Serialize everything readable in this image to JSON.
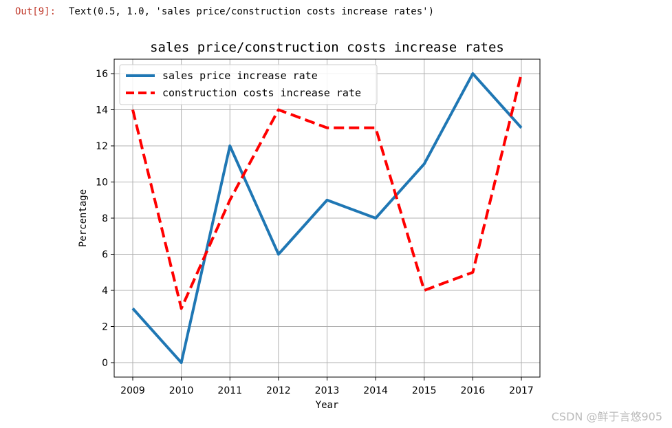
{
  "cell": {
    "prompt": "Out[9]:",
    "output_text": "Text(0.5, 1.0, 'sales price/construction costs increase rates')"
  },
  "watermark": "CSDN @鲜于言悠905",
  "chart_data": {
    "type": "line",
    "title": "sales price/construction costs increase rates",
    "xlabel": "Year",
    "ylabel": "Percentage",
    "categories": [
      "2009",
      "2010",
      "2011",
      "2012",
      "2013",
      "2014",
      "2015",
      "2016",
      "2017"
    ],
    "yticks": [
      "0",
      "2",
      "4",
      "6",
      "8",
      "10",
      "12",
      "14",
      "16"
    ],
    "ylim": [
      -0.8,
      16.8
    ],
    "grid": true,
    "legend_position": "top-left",
    "series": [
      {
        "name": "sales price increase rate",
        "values": [
          3,
          0,
          12,
          6,
          9,
          8,
          11,
          16,
          13
        ],
        "color": "#1f77b4",
        "style": "solid"
      },
      {
        "name": "construction costs increase rate",
        "values": [
          14,
          3,
          9,
          14,
          13,
          13,
          4,
          5,
          16
        ],
        "color": "#ff0000",
        "style": "dashed"
      }
    ]
  }
}
